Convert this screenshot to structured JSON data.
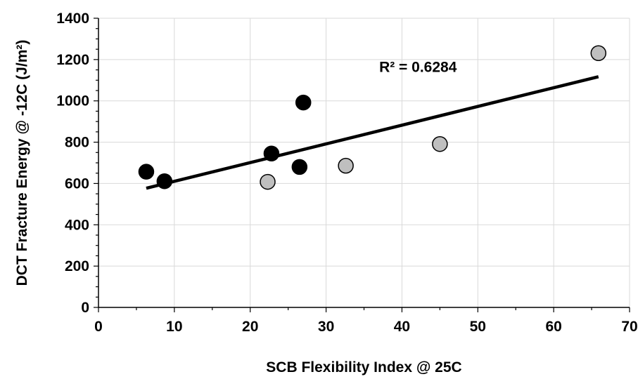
{
  "chart_data": {
    "type": "scatter",
    "title": "",
    "xlabel": "SCB Flexibility Index @ 25C",
    "ylabel": "DCT Fracture Energy @ -12C (J/m²)",
    "xlim": [
      0,
      70
    ],
    "ylim": [
      0,
      1400
    ],
    "xticks": [
      0,
      10,
      20,
      30,
      40,
      50,
      60,
      70
    ],
    "yticks": [
      0,
      200,
      400,
      600,
      800,
      1000,
      1200,
      1400
    ],
    "grid": true,
    "legend": "none",
    "series": [
      {
        "color": "#000000",
        "points": [
          {
            "x": 6.3,
            "y": 657
          },
          {
            "x": 8.7,
            "y": 611
          },
          {
            "x": 22.8,
            "y": 745
          },
          {
            "x": 26.5,
            "y": 680
          },
          {
            "x": 27.0,
            "y": 992
          }
        ]
      },
      {
        "color": "#bfbfbf",
        "points": [
          {
            "x": 22.3,
            "y": 608
          },
          {
            "x": 32.6,
            "y": 686
          },
          {
            "x": 45.0,
            "y": 791
          },
          {
            "x": 65.9,
            "y": 1231
          }
        ]
      }
    ],
    "trendline": {
      "x1": 6.3,
      "y1": 577,
      "x2": 65.9,
      "y2": 1117,
      "color": "#000000"
    },
    "annotation": {
      "text": "R² = 0.6284",
      "x": 37.0,
      "y": 1140
    }
  }
}
